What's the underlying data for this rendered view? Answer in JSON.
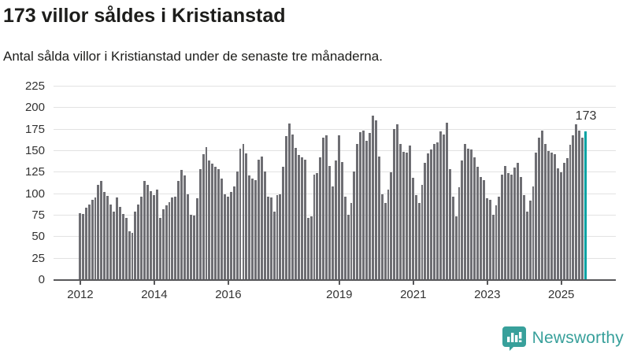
{
  "header": {
    "title": "173 villor såldes i Kristianstad",
    "subtitle": "Antal sålda villor i Kristianstad under de senaste tre månaderna."
  },
  "footer": {
    "brand": "Newsworthy"
  },
  "colors": {
    "bar": "#6e6e73",
    "accent": "#00a2a2",
    "brand": "#38a09b",
    "gridline": "#e2e2e2",
    "axis_line": "#58585a",
    "axis_text": "#333333",
    "title_text": "#1d1d1b"
  },
  "chart_data": {
    "type": "bar",
    "title": "173 villor såldes i Kristianstad",
    "subtitle": "Antal sålda villor i Kristianstad under de senaste tre månaderna.",
    "xlabel": "",
    "ylabel": "",
    "unit": "sålda villor (rullande 3 månader)",
    "frequency": "monthly",
    "x_start": "2012-01",
    "ylim": [
      0,
      225
    ],
    "yticks": [
      0,
      25,
      50,
      75,
      100,
      125,
      150,
      175,
      200,
      225
    ],
    "grid": true,
    "legend": false,
    "highlight_last": true,
    "annotation": "173",
    "x_ticks": [
      {
        "label": "2012",
        "month_index": 0
      },
      {
        "label": "2014",
        "month_index": 24
      },
      {
        "label": "2016",
        "month_index": 48
      },
      {
        "label": "2019",
        "month_index": 84
      },
      {
        "label": "2021",
        "month_index": 108
      },
      {
        "label": "2023",
        "month_index": 132
      },
      {
        "label": "2025",
        "month_index": 156
      }
    ],
    "values": [
      78,
      77,
      84,
      88,
      93,
      96,
      111,
      115,
      102,
      98,
      88,
      80,
      96,
      85,
      77,
      72,
      57,
      55,
      80,
      88,
      97,
      115,
      111,
      103,
      99,
      105,
      72,
      82,
      87,
      91,
      96,
      97,
      115,
      128,
      122,
      100,
      76,
      75,
      95,
      129,
      146,
      155,
      139,
      135,
      132,
      129,
      118,
      100,
      97,
      102,
      109,
      126,
      153,
      158,
      147,
      122,
      118,
      116,
      140,
      144,
      126,
      97,
      96,
      80,
      99,
      100,
      132,
      167,
      182,
      169,
      154,
      145,
      143,
      140,
      72,
      74,
      123,
      124,
      143,
      166,
      168,
      133,
      109,
      139,
      168,
      137,
      97,
      76,
      90,
      126,
      158,
      172,
      174,
      162,
      171,
      191,
      186,
      144,
      100,
      90,
      105,
      125,
      176,
      181,
      158,
      149,
      148,
      156,
      119,
      99,
      90,
      111,
      136,
      147,
      152,
      158,
      160,
      173,
      169,
      183,
      129,
      97,
      74,
      108,
      139,
      158,
      153,
      152,
      143,
      132,
      120,
      116,
      95,
      93,
      76,
      87,
      97,
      123,
      133,
      124,
      123,
      131,
      136,
      120,
      99,
      80,
      92,
      109,
      148,
      166,
      174,
      158,
      150,
      148,
      146,
      130,
      125,
      136,
      142,
      157,
      168,
      181,
      174,
      166,
      173
    ]
  }
}
